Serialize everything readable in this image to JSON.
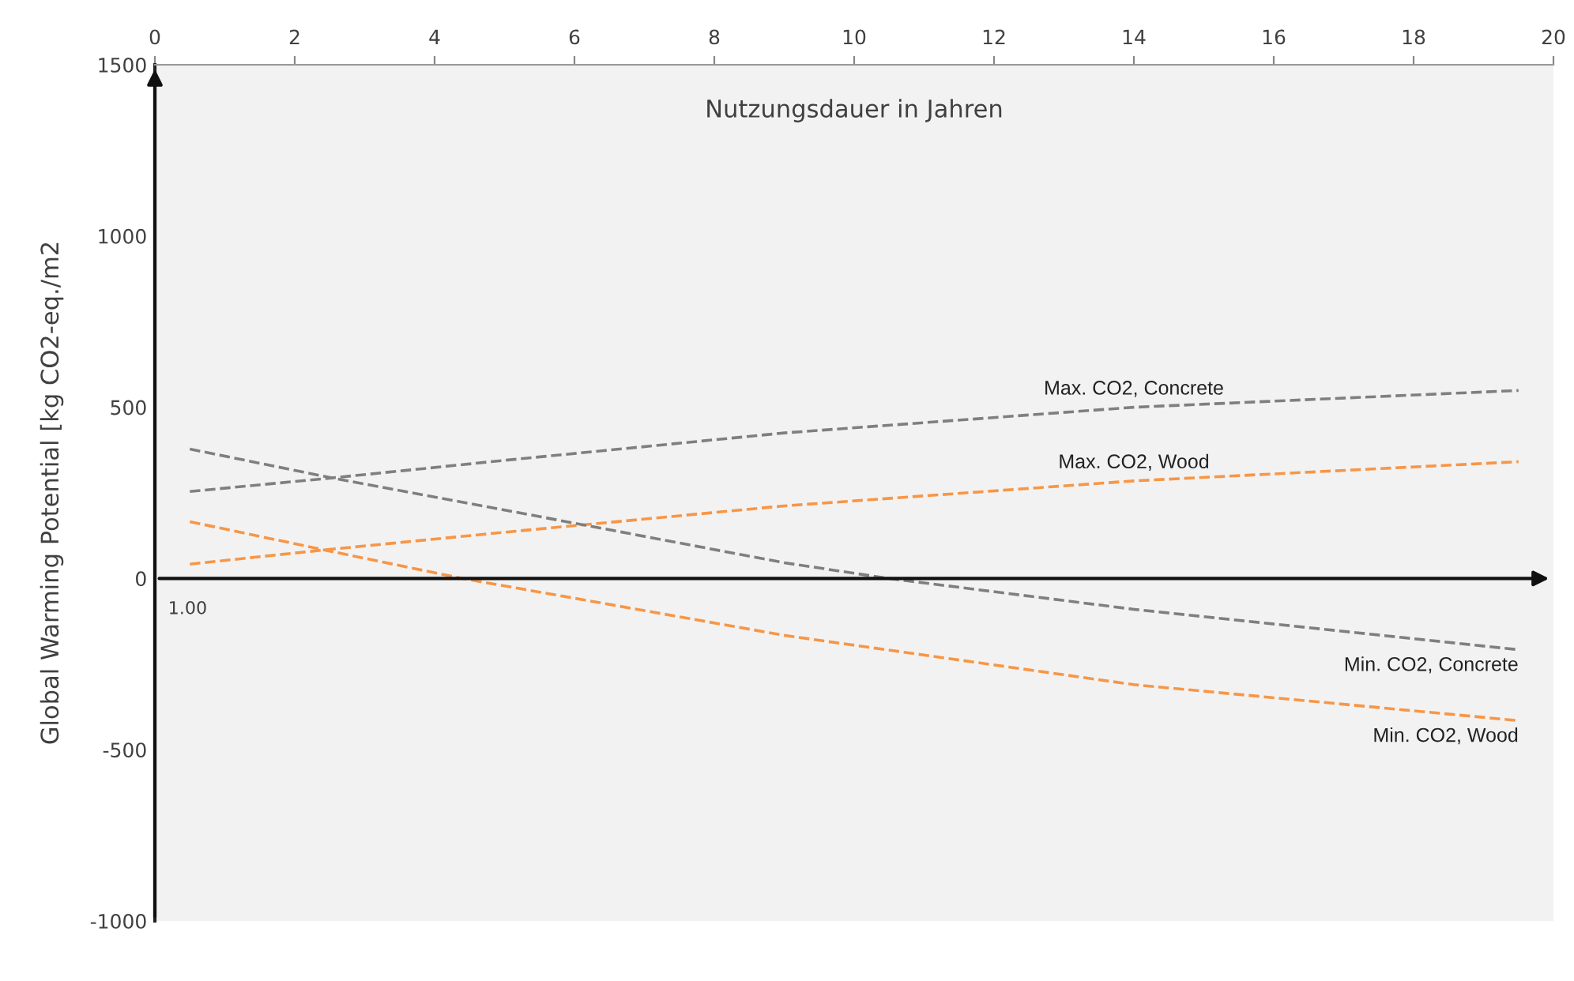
{
  "chart_data": {
    "type": "line",
    "xlabel": "Nutzungsdauer in Jahren",
    "ylabel": "Global Warming Potential [kg CO2-eq./m2",
    "xlim": [
      0,
      20
    ],
    "xticks": [
      0,
      2,
      4,
      6,
      8,
      10,
      12,
      14,
      16,
      18,
      20
    ],
    "ylim": [
      -1000,
      1500
    ],
    "yticks": [
      -1000,
      -500,
      0,
      500,
      1000,
      1500
    ],
    "line_style": "dashed",
    "marker": "none",
    "grid": false,
    "legend": false,
    "annotations": [
      "1.00"
    ],
    "series": [
      {
        "name": "Max. CO2, Concrete",
        "color": "#7f7f7f",
        "x": [
          0.5,
          2.5,
          5,
          9,
          14,
          19.5
        ],
        "values": [
          254,
          293,
          345,
          425,
          500,
          549
        ]
      },
      {
        "name": "Max. CO2, Wood",
        "color": "#f79646",
        "x": [
          0.5,
          2.5,
          5,
          9,
          14,
          19.5
        ],
        "values": [
          42,
          85,
          135,
          212,
          285,
          341
        ]
      },
      {
        "name": "Min. CO2, Concrete",
        "color": "#7f7f7f",
        "x": [
          0.5,
          2.5,
          5,
          9,
          10.5,
          14,
          19.5
        ],
        "values": [
          378,
          295,
          200,
          46,
          0,
          -90,
          -208
        ]
      },
      {
        "name": "Min. CO2, Wood",
        "color": "#f79646",
        "x": [
          0.5,
          2.5,
          4.4,
          9,
          14,
          19.5
        ],
        "values": [
          166,
          80,
          0,
          -166,
          -310,
          -415
        ]
      }
    ]
  }
}
